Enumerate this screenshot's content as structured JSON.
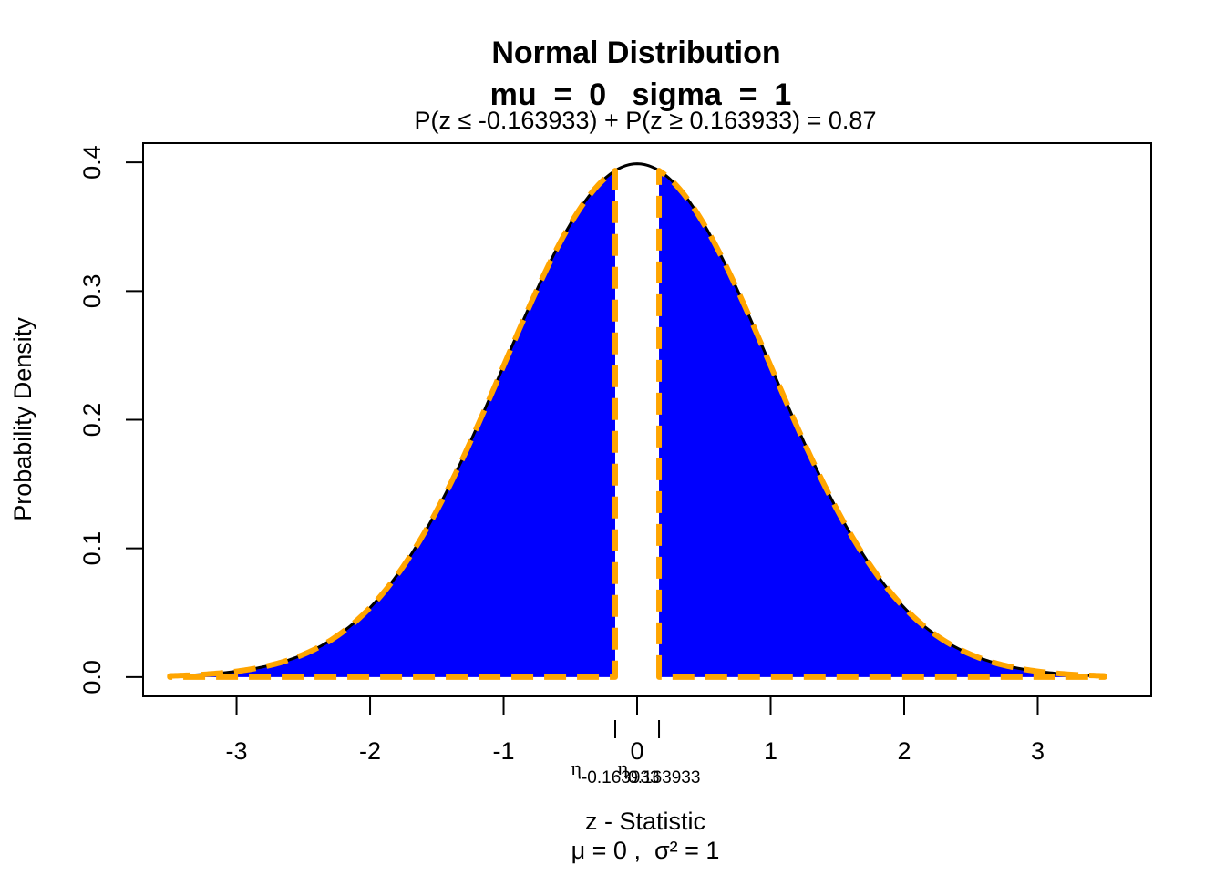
{
  "chart_data": {
    "type": "area",
    "title": "Normal Distribution",
    "title_line2": "mu  =  0   sigma  =  1",
    "subtitle": "P(z ≤ -0.163933) + P(z ≥ 0.163933) = 0.87",
    "xlabel": "z - Statistic",
    "xlabel_line2": "μ = 0 ,  σ² = 1",
    "ylabel": "Probability Density",
    "mu": 0,
    "sigma": 1,
    "xlim": [
      -3.7,
      3.85
    ],
    "ylim": [
      -0.015,
      0.415
    ],
    "curve_range": [
      -3.5,
      3.5
    ],
    "xticks": [
      -3,
      -2,
      -1,
      0,
      1,
      2,
      3
    ],
    "xtick_labels": [
      "-3",
      "-2",
      "-1",
      "0",
      "1",
      "2",
      "3"
    ],
    "yticks": [
      0.0,
      0.1,
      0.2,
      0.3,
      0.4
    ],
    "ytick_labels": [
      "0.0",
      "0.1",
      "0.2",
      "0.3",
      "0.4"
    ],
    "lower_cutoff": -0.163933,
    "upper_cutoff": 0.163933,
    "shaded_probability": 0.87,
    "cutoff_labels": [
      {
        "symbol": "η",
        "subscript": "-0.163933",
        "value": -0.163933
      },
      {
        "symbol": "η",
        "subscript": "0.163933",
        "value": 0.163933
      }
    ],
    "colors": {
      "fill": "#0000FF",
      "outline": "#FFA500",
      "curve": "#000000"
    },
    "grid": false,
    "legend": "none"
  }
}
